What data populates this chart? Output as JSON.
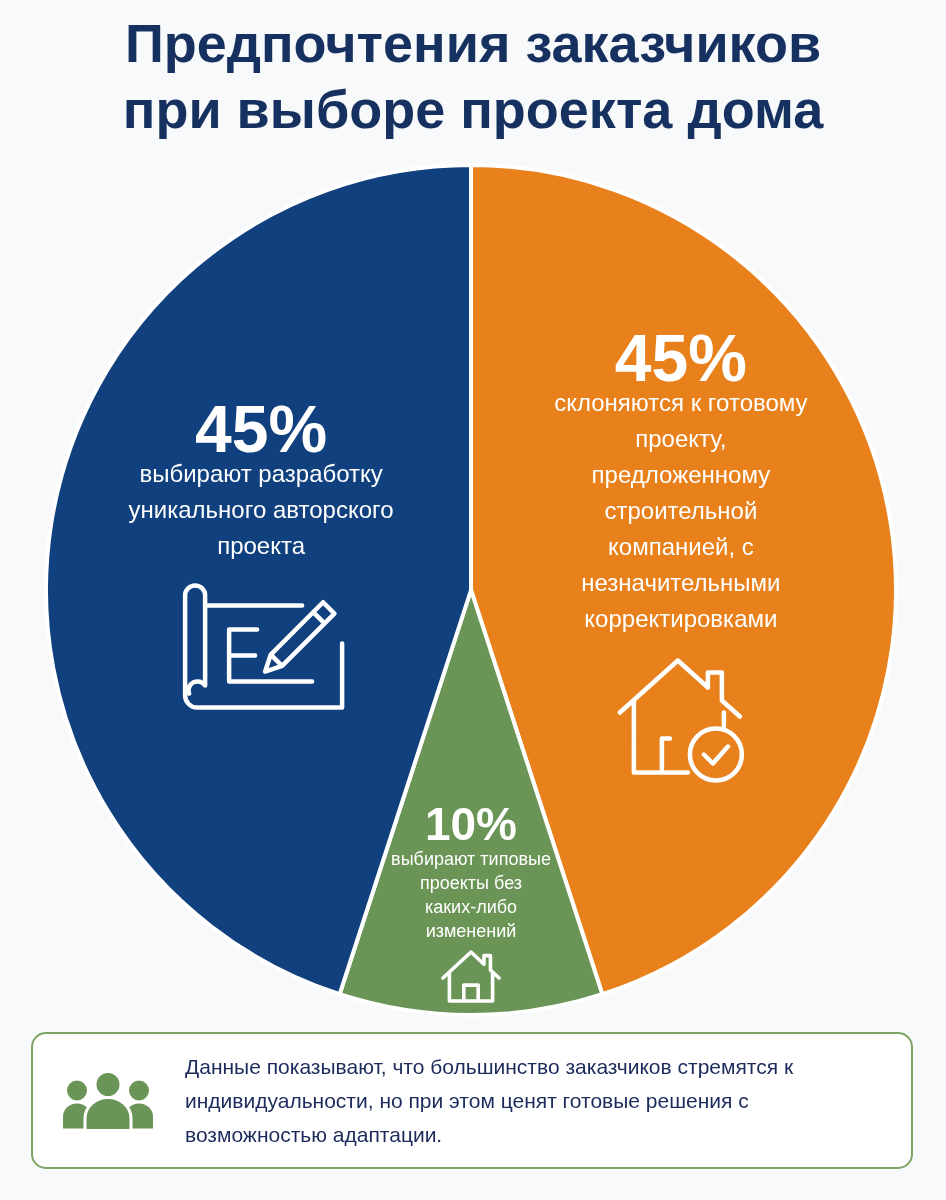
{
  "chart_data": {
    "type": "pie",
    "title": "Предпочтения заказчиков при выборе проекта дома",
    "categories": [
      "склоняются к готовому проекту, предложенному строительной компанией, с незначительными корректировками",
      "выбирают типовые проекты без каких-либо изменений",
      "выбирают разработку уникального авторского проекта"
    ],
    "values": [
      45,
      10,
      45
    ],
    "value_labels": [
      "45%",
      "10%",
      "45%"
    ],
    "colors": [
      "#e8801b",
      "#6b9556",
      "#10407d"
    ],
    "annotations": [
      "Данные показывают, что большинство заказчиков стремятся к индивидуальности, но при этом ценят готовые решения с возможностью адаптации."
    ]
  }
}
